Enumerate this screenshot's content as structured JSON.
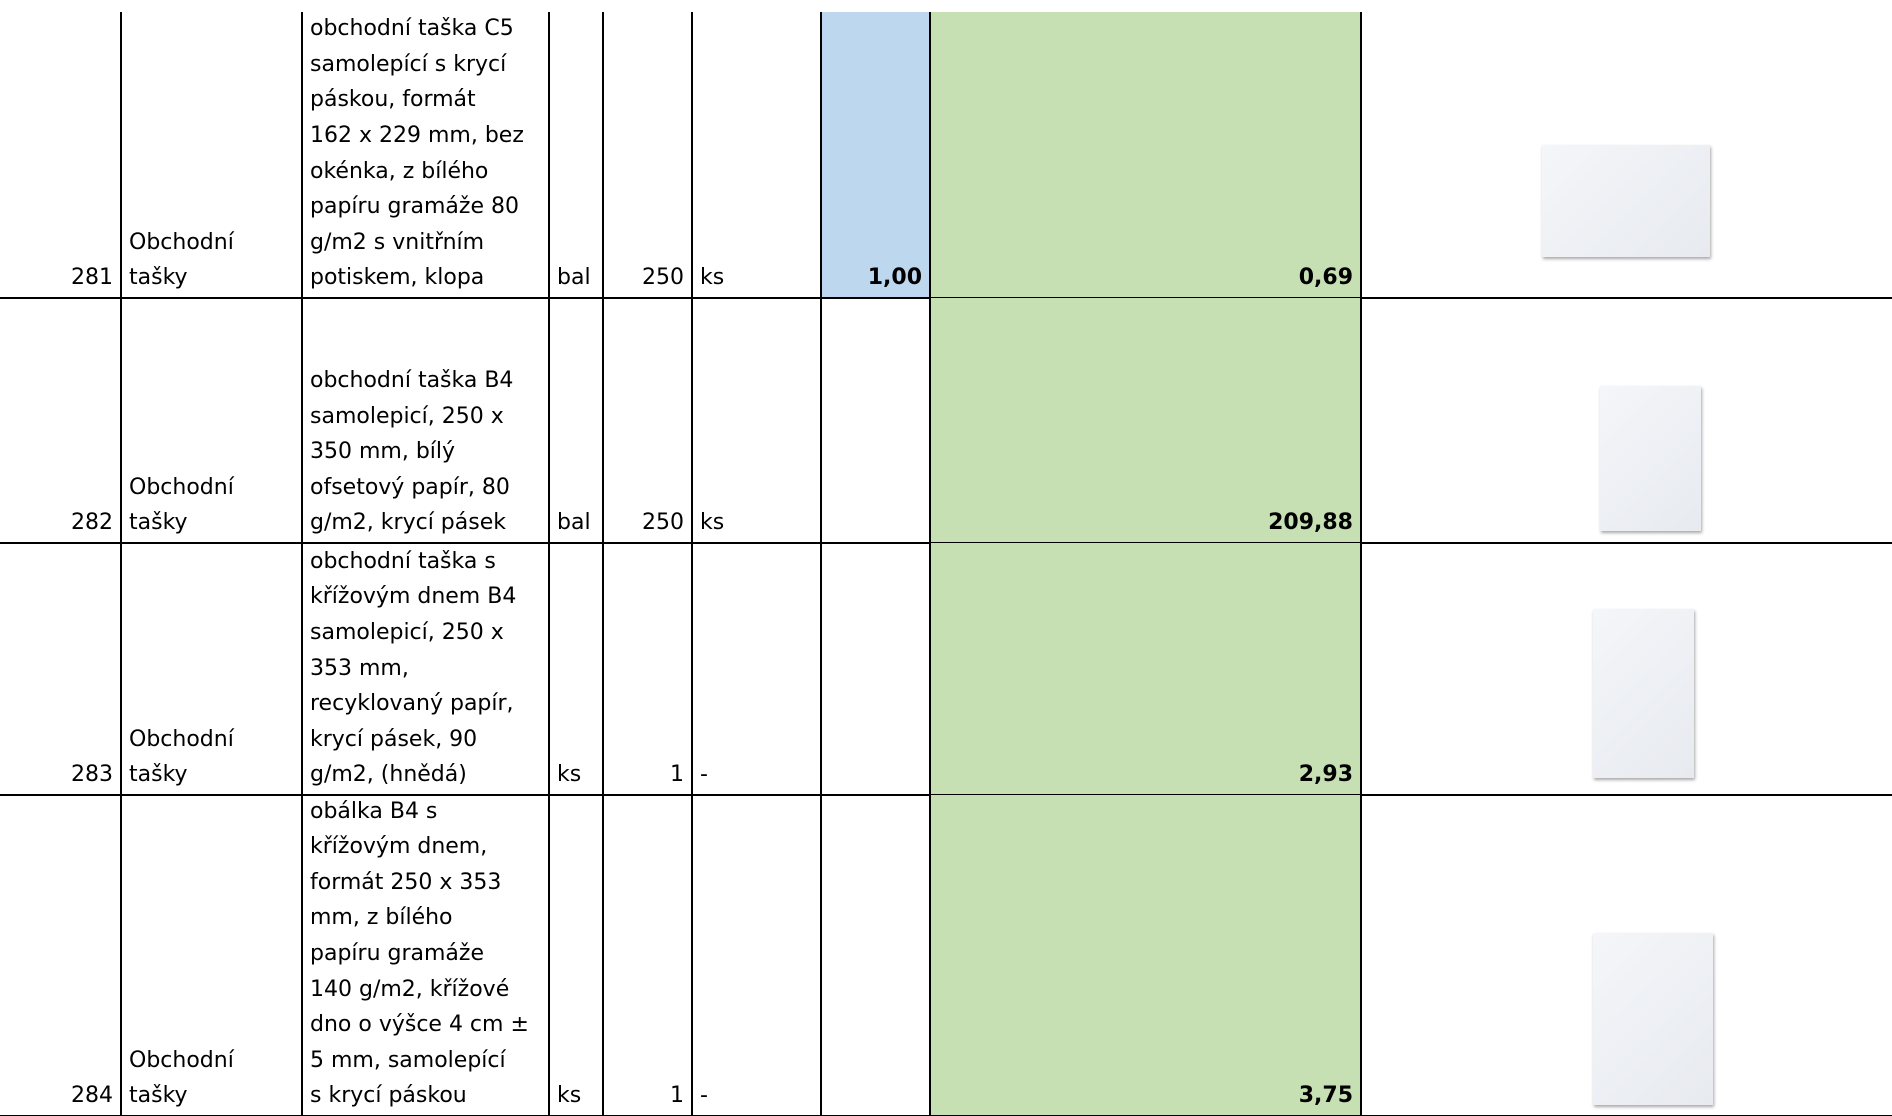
{
  "table": {
    "rows": [
      {
        "number": "281",
        "category": [
          "Obchodní",
          "tašky"
        ],
        "description": [
          "obchodní taška C5",
          "samolepící s krycí",
          "páskou, formát",
          "162 x 229 mm, bez",
          "okénka, z bílého",
          "papíru gramáže 80",
          "g/m2 s vnitřním",
          "potiskem, klopa"
        ],
        "unit": "bal",
        "quantity": "250",
        "pack_unit": "ks",
        "amount": "1,00",
        "price": "0,69"
      },
      {
        "number": "282",
        "category": [
          "Obchodní",
          "tašky"
        ],
        "description": [
          "obchodní taška B4",
          "samolepicí, 250 x",
          "350 mm, bílý",
          "ofsetový papír, 80",
          "g/m2, krycí pásek"
        ],
        "unit": "bal",
        "quantity": "250",
        "pack_unit": "ks",
        "price": "209,88"
      },
      {
        "number": "283",
        "category": [
          "Obchodní",
          "tašky"
        ],
        "description": [
          "obchodní taška s",
          "křížovým dnem B4",
          "samolepicí, 250 x",
          "353 mm,",
          "recyklovaný papír,",
          "krycí pásek, 90",
          "g/m2, (hnědá)"
        ],
        "unit": "ks",
        "quantity": "1",
        "pack_unit": "-",
        "price": "2,93"
      },
      {
        "number": "284",
        "category": [
          "Obchodní",
          "tašky"
        ],
        "description": [
          "obálka B4 s",
          "křížovým dnem,",
          "formát 250 x 353",
          "mm, z bílého",
          "papíru gramáže",
          "140 g/m2, křížové",
          "dno o výšce 4 cm ±",
          "5 mm, samolepící",
          "s krycí páskou"
        ],
        "unit": "ks",
        "quantity": "1",
        "pack_unit": "-",
        "price": "3,75"
      }
    ]
  }
}
